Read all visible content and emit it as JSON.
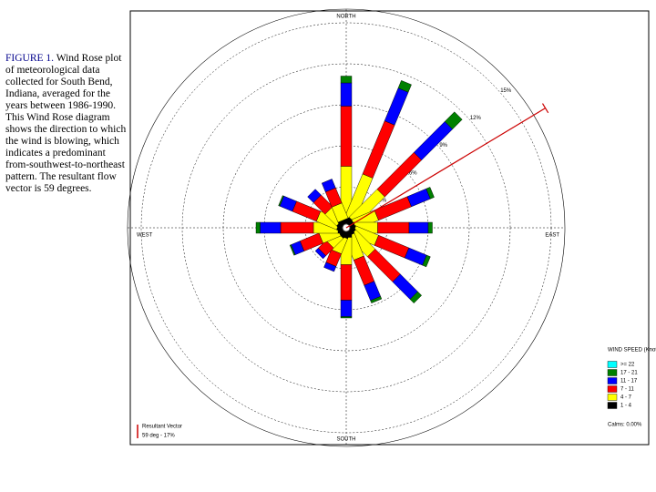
{
  "caption": {
    "label": "FIGURE 1.",
    "text": "Wind Rose plot of meteorological data collected for South Bend, Indiana, averaged for the years between 1986-1990. This Wind Rose diagram shows the direction to which the wind is blowing, which indicates a predominant from-southwest-to-northeast pattern. The resultant flow vector is 59 degrees."
  },
  "chart_data": {
    "type": "wind_rose",
    "axis_labels": {
      "north": "NORTH",
      "south": "SOUTH",
      "west": "WEST",
      "east": "EAST"
    },
    "x": [
      0,
      22.5,
      45,
      67.5,
      90,
      112.5,
      135,
      157.5,
      180,
      202.5,
      225,
      247.5,
      270,
      292.5,
      315,
      337.5
    ],
    "rlim": [
      0,
      16
    ],
    "rticks": [
      {
        "value": 3,
        "label": "3%"
      },
      {
        "value": 6,
        "label": "6%"
      },
      {
        "value": 9,
        "label": "9%"
      },
      {
        "value": 12,
        "label": "12%"
      },
      {
        "value": 15,
        "label": "15%"
      }
    ],
    "legend_title": "WIND SPEED (Knots)",
    "series": [
      {
        "name": "1 - 4",
        "color": "#000000",
        "values": [
          0.4,
          0.4,
          0.4,
          0.3,
          0.3,
          0.3,
          0.3,
          0.3,
          0.4,
          0.4,
          0.4,
          0.3,
          0.3,
          0.3,
          0.3,
          0.3
        ]
      },
      {
        "name": "4 - 7",
        "color": "#ffff00",
        "values": [
          3.8,
          3.4,
          2.9,
          1.8,
          1.7,
          1.8,
          2.0,
          1.8,
          2.0,
          1.2,
          1.0,
          1.4,
          1.8,
          1.6,
          1.2,
          1.2
        ]
      },
      {
        "name": "7 - 11",
        "color": "#ff0000",
        "values": [
          4.4,
          4.2,
          3.8,
          2.6,
          2.3,
          2.4,
          2.6,
          2.0,
          2.6,
          1.0,
          0.8,
          1.5,
          2.4,
          1.9,
          1.2,
          1.2
        ]
      },
      {
        "name": "11 - 17",
        "color": "#0000ff",
        "values": [
          1.7,
          2.6,
          3.2,
          1.5,
          1.4,
          1.4,
          1.8,
          1.2,
          1.2,
          0.4,
          0.3,
          0.7,
          1.5,
          1.0,
          0.6,
          0.7
        ]
      },
      {
        "name": "17 - 21",
        "color": "#008000",
        "values": [
          0.5,
          0.6,
          1.0,
          0.3,
          0.3,
          0.3,
          0.4,
          0.2,
          0.1,
          0.0,
          0.0,
          0.1,
          0.3,
          0.1,
          0.0,
          0.0
        ]
      },
      {
        "name": ">= 22",
        "color": "#00ffff",
        "values": [
          0,
          0,
          0,
          0,
          0,
          0,
          0,
          0,
          0,
          0,
          0,
          0,
          0,
          0,
          0,
          0
        ]
      }
    ],
    "calms": "Calms: 0.00%",
    "resultant": {
      "label": "Resultant Vector",
      "direction": 59,
      "magnitude": 17,
      "text": "59 deg - 17%",
      "color": "#cc0000"
    }
  }
}
